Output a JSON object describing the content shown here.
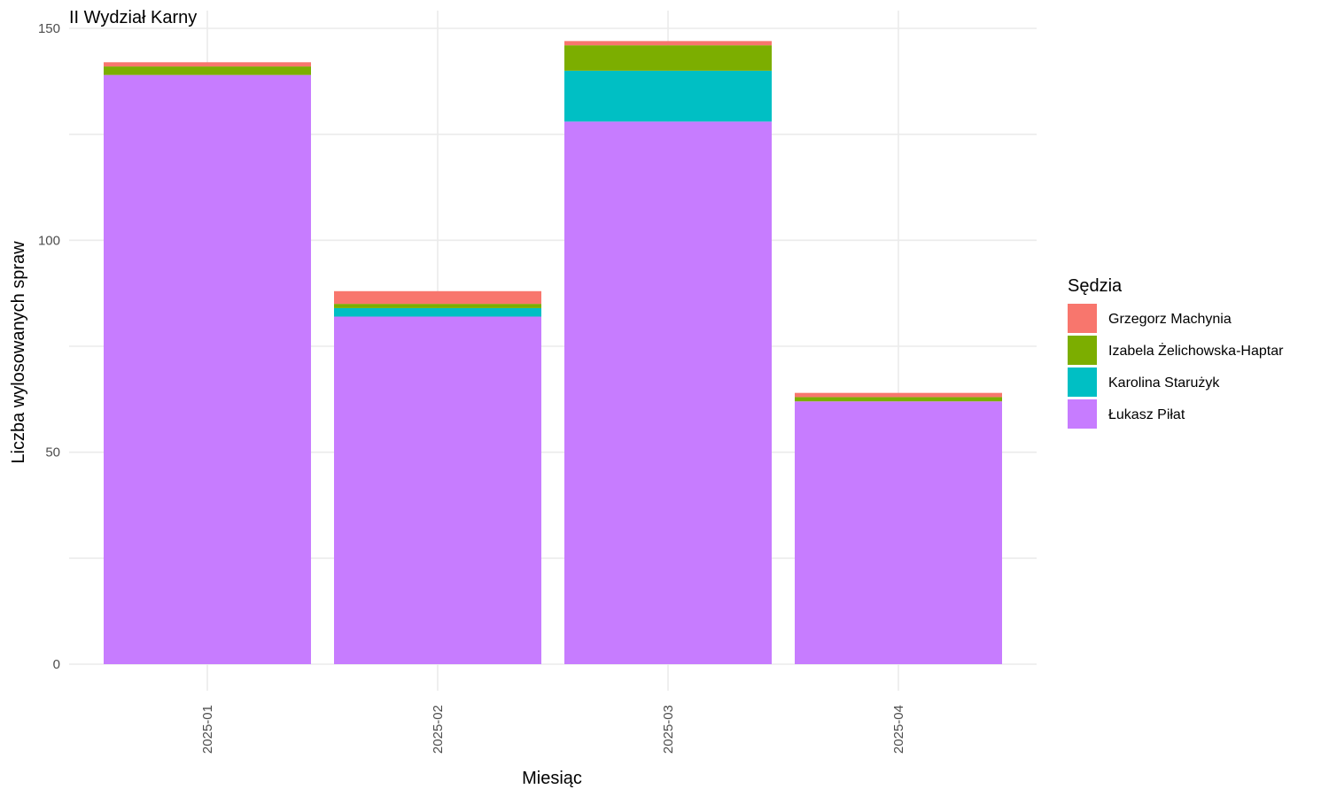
{
  "chart_data": {
    "type": "bar",
    "stacked": true,
    "title": "II Wydział Karny",
    "xlabel": "Miesiąc",
    "ylabel": "Liczba wylosowanych spraw",
    "categories": [
      "2025-01",
      "2025-02",
      "2025-03",
      "2025-04"
    ],
    "ylim": [
      0,
      150
    ],
    "yticks": [
      0,
      50,
      100,
      150
    ],
    "grid": true,
    "legend": {
      "title": "Sędzia",
      "position": "right"
    },
    "series": [
      {
        "name": "Łukasz Piłat",
        "color": "#C77CFF",
        "values": [
          139,
          82,
          128,
          62
        ]
      },
      {
        "name": "Karolina Starużyk",
        "color": "#00BFC4",
        "values": [
          0,
          2,
          12,
          0
        ]
      },
      {
        "name": "Izabela Żelichowska-Haptar",
        "color": "#7CAE00",
        "values": [
          2,
          1,
          6,
          1
        ]
      },
      {
        "name": "Grzegorz Machynia",
        "color": "#F8766D",
        "values": [
          1,
          3,
          1,
          1
        ]
      }
    ],
    "legend_order": [
      "Grzegorz Machynia",
      "Izabela Żelichowska-Haptar",
      "Karolina Starużyk",
      "Łukasz Piłat"
    ]
  }
}
